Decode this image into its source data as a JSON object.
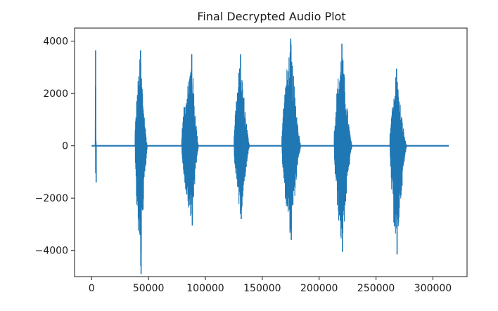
{
  "chart_data": {
    "type": "line",
    "title": "Final Decrypted Audio Plot",
    "xlabel": "",
    "ylabel": "",
    "xlim": [
      -15000,
      330000
    ],
    "ylim": [
      -5000,
      4500
    ],
    "xticks": [
      0,
      50000,
      100000,
      150000,
      200000,
      250000,
      300000
    ],
    "xtick_labels": [
      "0",
      "50000",
      "100000",
      "150000",
      "200000",
      "250000",
      "300000"
    ],
    "yticks": [
      -4000,
      -2000,
      0,
      2000,
      4000
    ],
    "ytick_labels": [
      "−4000",
      "−2000",
      "0",
      "2000",
      "4000"
    ],
    "grid": false,
    "series_color": "#1f77b4",
    "series": [
      {
        "name": "",
        "bursts": [
          {
            "x_start": 3000,
            "x_end": 4000,
            "x_peak": 3500,
            "max": 3650,
            "min": -1400
          },
          {
            "x_start": 38000,
            "x_end": 49000,
            "x_peak": 43000,
            "max": 3650,
            "min": -4900
          },
          {
            "x_start": 79000,
            "x_end": 94000,
            "x_peak": 88000,
            "max": 3500,
            "min": -3050
          },
          {
            "x_start": 125000,
            "x_end": 139000,
            "x_peak": 131000,
            "max": 3500,
            "min": -2800
          },
          {
            "x_start": 167000,
            "x_end": 184000,
            "x_peak": 175000,
            "max": 4100,
            "min": -3600
          },
          {
            "x_start": 213000,
            "x_end": 229000,
            "x_peak": 220000,
            "max": 3900,
            "min": -4050
          },
          {
            "x_start": 262000,
            "x_end": 277000,
            "x_peak": 268000,
            "max": 2950,
            "min": -4150
          }
        ],
        "baseline_x": [
          0,
          314000
        ],
        "baseline_y": 0
      }
    ]
  }
}
